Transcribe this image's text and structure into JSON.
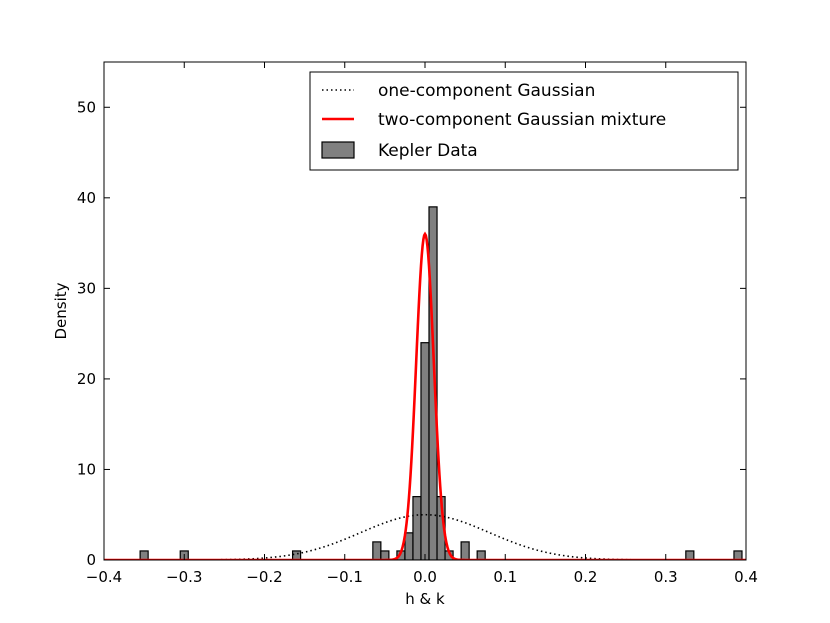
{
  "chart_data": {
    "type": "bar",
    "xlabel": "h & k",
    "ylabel": "Density",
    "xlim": [
      -0.4,
      0.4
    ],
    "ylim": [
      0,
      55
    ],
    "xticks": [
      -0.4,
      -0.3,
      -0.2,
      -0.1,
      0.0,
      0.1,
      0.2,
      0.3,
      0.4
    ],
    "xtick_labels": [
      "−0.4",
      "−0.3",
      "−0.2",
      "−0.1",
      "0.0",
      "0.1",
      "0.2",
      "0.3",
      "0.4"
    ],
    "yticks": [
      0,
      10,
      20,
      30,
      40,
      50
    ],
    "ytick_labels": [
      "0",
      "10",
      "20",
      "30",
      "40",
      "50"
    ],
    "grid": false,
    "legend_position": "top-right",
    "histogram": {
      "name": "Kepler Data",
      "color": "#808080",
      "bin_width": 0.01,
      "bins": [
        {
          "x0": -0.355,
          "x1": -0.345,
          "density": 1.0
        },
        {
          "x0": -0.305,
          "x1": -0.295,
          "density": 1.0
        },
        {
          "x0": -0.165,
          "x1": -0.155,
          "density": 1.0
        },
        {
          "x0": -0.065,
          "x1": -0.055,
          "density": 2.0
        },
        {
          "x0": -0.055,
          "x1": -0.045,
          "density": 1.0
        },
        {
          "x0": -0.035,
          "x1": -0.025,
          "density": 1.0
        },
        {
          "x0": -0.025,
          "x1": -0.015,
          "density": 3.0
        },
        {
          "x0": -0.015,
          "x1": -0.005,
          "density": 7.0
        },
        {
          "x0": -0.005,
          "x1": 0.005,
          "density": 24.0
        },
        {
          "x0": 0.005,
          "x1": 0.015,
          "density": 39.0
        },
        {
          "x0": 0.015,
          "x1": 0.025,
          "density": 7.0
        },
        {
          "x0": 0.025,
          "x1": 0.035,
          "density": 1.0
        },
        {
          "x0": 0.045,
          "x1": 0.055,
          "density": 2.0
        },
        {
          "x0": 0.065,
          "x1": 0.075,
          "density": 1.0
        },
        {
          "x0": 0.325,
          "x1": 0.335,
          "density": 1.0
        },
        {
          "x0": 0.385,
          "x1": 0.395,
          "density": 1.0
        }
      ]
    },
    "series": [
      {
        "name": "one-component Gaussian",
        "style": "dotted",
        "color": "#000000",
        "curve": "gaussian",
        "mean": 0.0,
        "sigma": 0.08,
        "peak": 5.0
      },
      {
        "name": "two-component Gaussian mixture",
        "style": "solid",
        "color": "#ff0000",
        "curve": "gaussian",
        "mean": 0.0,
        "sigma": 0.011,
        "peak": 36.0
      }
    ],
    "legend": [
      {
        "label": "one-component Gaussian",
        "kind": "dotted-line"
      },
      {
        "label": "two-component Gaussian mixture",
        "kind": "red-line"
      },
      {
        "label": "Kepler Data",
        "kind": "patch"
      }
    ]
  }
}
